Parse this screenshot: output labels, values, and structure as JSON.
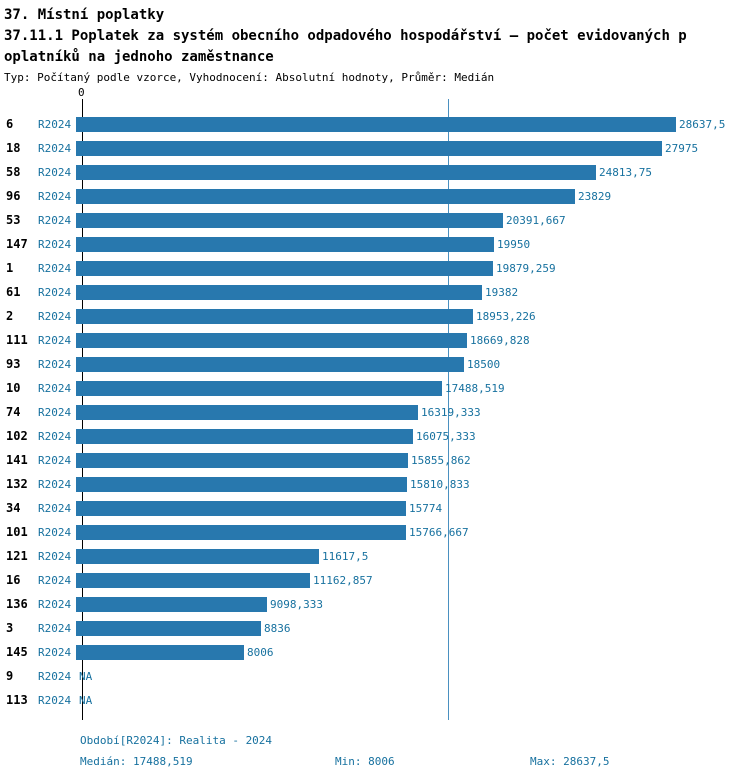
{
  "header": {
    "title_line1": "37. Místní poplatky",
    "title_line2": "37.11.1 Poplatek za systém obecního odpadového hospodářství – počet evidovaných p",
    "title_line3": "oplatníků na jednoho zaměstnance",
    "meta": "Typ: Počítaný podle vzorce, Vyhodnocení: Absolutní hodnoty, Průměr: Medián"
  },
  "chart_data": {
    "type": "bar",
    "orientation": "horizontal",
    "title": "37.11.1 Poplatek za systém obecního odpadového hospodářství – počet evidovaných poplatníků na jednoho zaměstnance",
    "axis_origin_label": "0",
    "series_label": "R2024",
    "xlim": [
      0,
      28637.5
    ],
    "median_value": 17488.519,
    "colors": {
      "bar": "#2878ae",
      "text": "#17719f",
      "median_line": "#4a90c0"
    },
    "rows": [
      {
        "id": "6",
        "period": "R2024",
        "value": 28637.5,
        "label": "28637,5"
      },
      {
        "id": "18",
        "period": "R2024",
        "value": 27975,
        "label": "27975"
      },
      {
        "id": "58",
        "period": "R2024",
        "value": 24813.75,
        "label": "24813,75"
      },
      {
        "id": "96",
        "period": "R2024",
        "value": 23829,
        "label": "23829"
      },
      {
        "id": "53",
        "period": "R2024",
        "value": 20391.667,
        "label": "20391,667"
      },
      {
        "id": "147",
        "period": "R2024",
        "value": 19950,
        "label": "19950"
      },
      {
        "id": "1",
        "period": "R2024",
        "value": 19879.259,
        "label": "19879,259"
      },
      {
        "id": "61",
        "period": "R2024",
        "value": 19382,
        "label": "19382"
      },
      {
        "id": "2",
        "period": "R2024",
        "value": 18953.226,
        "label": "18953,226"
      },
      {
        "id": "111",
        "period": "R2024",
        "value": 18669.828,
        "label": "18669,828"
      },
      {
        "id": "93",
        "period": "R2024",
        "value": 18500,
        "label": "18500"
      },
      {
        "id": "10",
        "period": "R2024",
        "value": 17488.519,
        "label": "17488,519"
      },
      {
        "id": "74",
        "period": "R2024",
        "value": 16319.333,
        "label": "16319,333"
      },
      {
        "id": "102",
        "period": "R2024",
        "value": 16075.333,
        "label": "16075,333"
      },
      {
        "id": "141",
        "period": "R2024",
        "value": 15855.862,
        "label": "15855,862"
      },
      {
        "id": "132",
        "period": "R2024",
        "value": 15810.833,
        "label": "15810,833"
      },
      {
        "id": "34",
        "period": "R2024",
        "value": 15774,
        "label": "15774"
      },
      {
        "id": "101",
        "period": "R2024",
        "value": 15766.667,
        "label": "15766,667"
      },
      {
        "id": "121",
        "period": "R2024",
        "value": 11617.5,
        "label": "11617,5"
      },
      {
        "id": "16",
        "period": "R2024",
        "value": 11162.857,
        "label": "11162,857"
      },
      {
        "id": "136",
        "period": "R2024",
        "value": 9098.333,
        "label": "9098,333"
      },
      {
        "id": "3",
        "period": "R2024",
        "value": 8836,
        "label": "8836"
      },
      {
        "id": "145",
        "period": "R2024",
        "value": 8006,
        "label": "8006"
      },
      {
        "id": "9",
        "period": "R2024",
        "value": null,
        "label": "NA"
      },
      {
        "id": "113",
        "period": "R2024",
        "value": null,
        "label": "NA"
      }
    ]
  },
  "footer": {
    "period": "Období[R2024]: Realita - 2024",
    "median": "Medián: 17488,519",
    "min": "Min: 8006",
    "max": "Max: 28637,5"
  }
}
